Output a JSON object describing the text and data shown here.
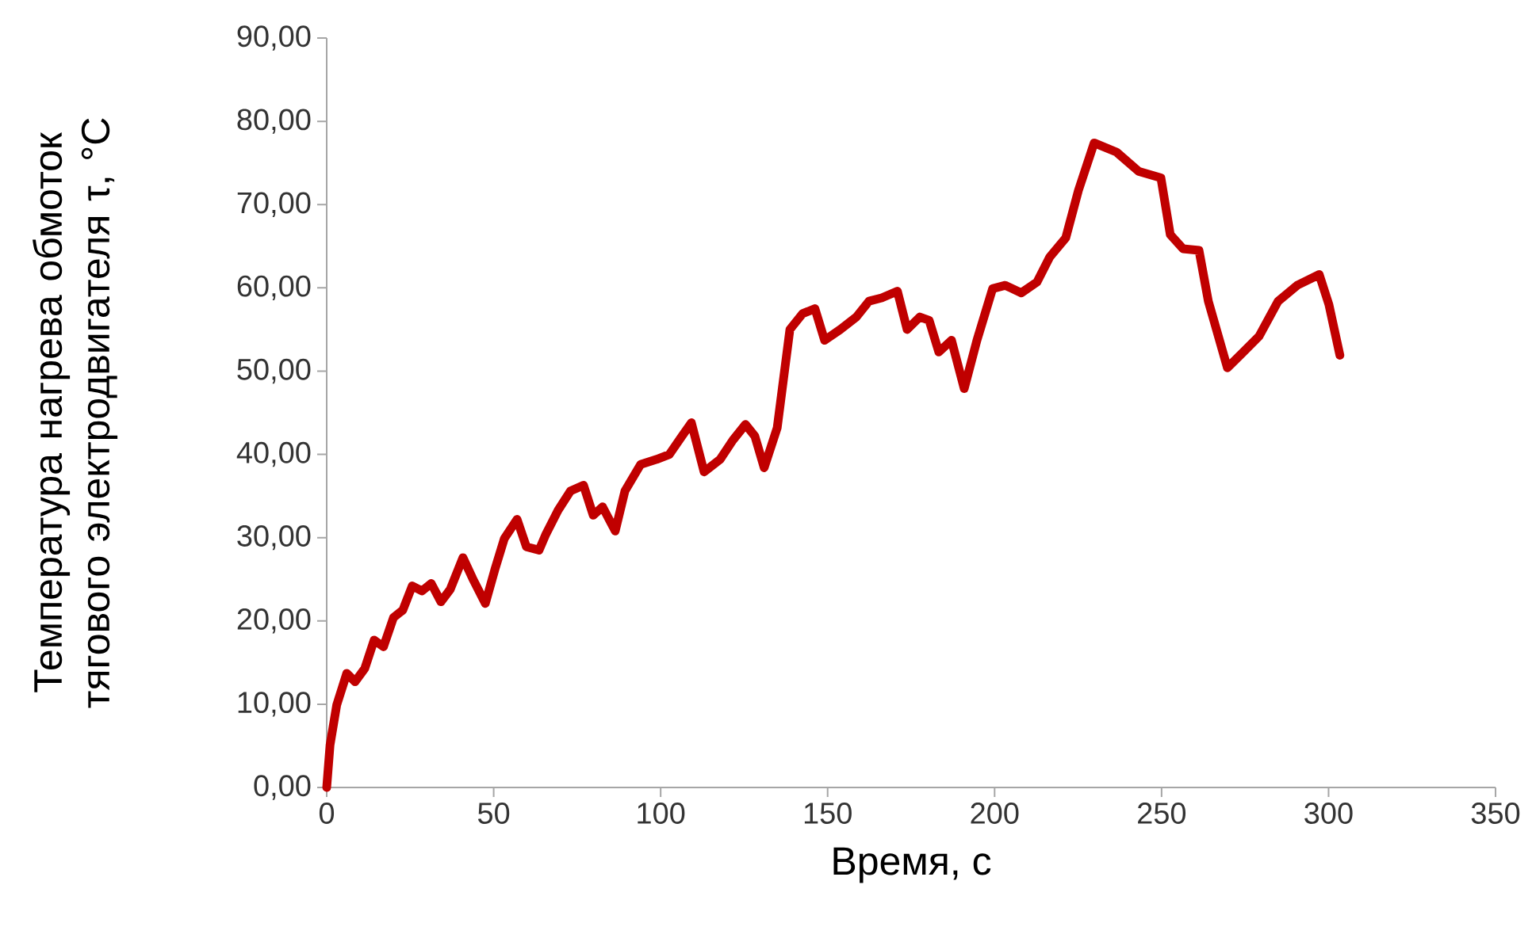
{
  "chart_data": {
    "type": "line",
    "xlabel": "Время, с",
    "ylabel": "Температура  нагрева обмоток тягового электродвигателя τ, °С",
    "xlim": [
      0,
      350
    ],
    "ylim": [
      0,
      90
    ],
    "xticks": [
      0,
      50,
      100,
      150,
      200,
      250,
      300,
      350
    ],
    "yticks": [
      {
        "value": 0,
        "label": "0,00"
      },
      {
        "value": 10,
        "label": "10,00"
      },
      {
        "value": 20,
        "label": "20,00"
      },
      {
        "value": 30,
        "label": "30,00"
      },
      {
        "value": 40,
        "label": "40,00"
      },
      {
        "value": 50,
        "label": "50,00"
      },
      {
        "value": 60,
        "label": "60,00"
      },
      {
        "value": 70,
        "label": "70,00"
      },
      {
        "value": 80,
        "label": "80,00"
      },
      {
        "value": 90,
        "label": "90,00"
      }
    ],
    "grid": false,
    "marker": "none",
    "line_style": "solid",
    "x": [
      0,
      1,
      3,
      6,
      8.5,
      11.4,
      14.2,
      17,
      20,
      22.8,
      25.6,
      28.5,
      31.3,
      34.2,
      37,
      40.8,
      43.7,
      47.5,
      50.3,
      53.2,
      57,
      59.8,
      63.6,
      65.5,
      69.3,
      73,
      76.9,
      79.8,
      82.6,
      86.4,
      89.3,
      94,
      98.8,
      102.6,
      106.4,
      109.2,
      113,
      117.8,
      121.6,
      125.4,
      128.2,
      131,
      134.9,
      138.7,
      142.5,
      146.2,
      149.1,
      153.8,
      158.6,
      162.4,
      166.2,
      170.9,
      173.8,
      177.6,
      180.4,
      183.3,
      187.1,
      190.9,
      194.7,
      199.4,
      203.2,
      208,
      212.7,
      216.5,
      221.3,
      225.1,
      229.8,
      236.5,
      243.1,
      249.8,
      252.6,
      256.4,
      261.2,
      264,
      269.7,
      274.5,
      279.2,
      284.9,
      290.6,
      297.2,
      300.1,
      303.4
    ],
    "series": [
      {
        "color": "#c00000",
        "values": [
          0,
          5.1,
          9.9,
          13.7,
          12.7,
          14.3,
          17.7,
          16.9,
          20.4,
          21.3,
          24.2,
          23.6,
          24.5,
          22.3,
          23.8,
          27.6,
          25.1,
          22.1,
          26.1,
          29.9,
          32.2,
          28.9,
          28.5,
          30.3,
          33.3,
          35.6,
          36.3,
          32.7,
          33.7,
          30.8,
          35.6,
          38.8,
          39.4,
          40,
          42.2,
          43.8,
          37.9,
          39.4,
          41.7,
          43.6,
          42.2,
          38.4,
          43.2,
          55,
          56.9,
          57.5,
          53.7,
          55,
          56.5,
          58.4,
          58.8,
          59.6,
          55,
          56.5,
          56.1,
          52.3,
          53.7,
          47.9,
          53.7,
          59.9,
          60.3,
          59.4,
          60.7,
          63.7,
          66,
          71.7,
          77.4,
          76.3,
          74,
          73.2,
          66.4,
          64.7,
          64.5,
          58.4,
          50.4,
          52.3,
          54.2,
          58.4,
          60.3,
          61.6,
          58,
          51.9
        ]
      }
    ]
  }
}
